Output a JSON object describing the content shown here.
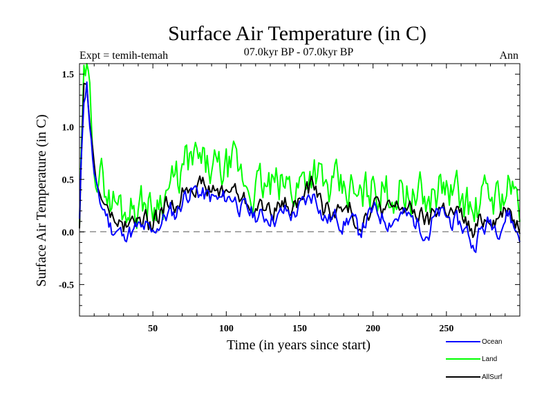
{
  "header": {
    "title": "Surface Air Temperature (in C)",
    "left_label": "Expt = temih-temah",
    "center_label": "07.0kyr BP - 07.0kyr BP",
    "right_label": "Ann"
  },
  "chart_data": {
    "type": "line",
    "title": "Surface Air Temperature (in C)",
    "xlabel": "Time (in years since start)",
    "ylabel": "Surface Air Temperature (in C)",
    "xlim": [
      0,
      300
    ],
    "ylim": [
      -0.8,
      1.6
    ],
    "xticks": [
      50,
      100,
      150,
      200,
      250
    ],
    "yticks": [
      -0.5,
      0.0,
      0.5,
      1.0,
      1.5
    ],
    "ytick_labels": [
      "-0.5",
      "0.0",
      "0.5",
      "1.0",
      "1.5"
    ],
    "reference_line": 0.0,
    "keypoints": [
      [
        0,
        0.1
      ],
      [
        1,
        0.55
      ],
      [
        3,
        1.3
      ],
      [
        5,
        1.45
      ],
      [
        8,
        0.9
      ],
      [
        10,
        0.6
      ],
      [
        12,
        0.4
      ],
      [
        15,
        0.3
      ],
      [
        18,
        0.25
      ],
      [
        20,
        0.15
      ],
      [
        22,
        0.1
      ],
      [
        25,
        0.08
      ],
      [
        28,
        0.05
      ],
      [
        30,
        -0.02
      ],
      [
        33,
        0.1
      ],
      [
        36,
        0.05
      ],
      [
        40,
        0.1
      ],
      [
        42,
        0.05
      ],
      [
        45,
        0.1
      ],
      [
        48,
        0.03
      ],
      [
        50,
        0.02
      ],
      [
        52,
        0.1
      ],
      [
        55,
        0.15
      ],
      [
        58,
        0.2
      ],
      [
        62,
        0.25
      ],
      [
        65,
        0.22
      ],
      [
        68,
        0.3
      ],
      [
        72,
        0.42
      ],
      [
        75,
        0.45
      ],
      [
        80,
        0.45
      ],
      [
        85,
        0.4
      ],
      [
        90,
        0.38
      ],
      [
        95,
        0.35
      ],
      [
        100,
        0.38
      ],
      [
        105,
        0.4
      ],
      [
        110,
        0.3
      ],
      [
        115,
        0.25
      ],
      [
        120,
        0.22
      ],
      [
        125,
        0.2
      ],
      [
        130,
        0.22
      ],
      [
        135,
        0.2
      ],
      [
        140,
        0.25
      ],
      [
        145,
        0.22
      ],
      [
        150,
        0.28
      ],
      [
        155,
        0.35
      ],
      [
        158,
        0.4
      ],
      [
        160,
        0.42
      ],
      [
        163,
        0.35
      ],
      [
        166,
        0.2
      ],
      [
        170,
        0.18
      ],
      [
        175,
        0.2
      ],
      [
        180,
        0.15
      ],
      [
        185,
        0.2
      ],
      [
        190,
        0.05
      ],
      [
        193,
        0.12
      ],
      [
        196,
        0.18
      ],
      [
        200,
        0.25
      ],
      [
        205,
        0.22
      ],
      [
        210,
        0.18
      ],
      [
        215,
        0.2
      ],
      [
        220,
        0.22
      ],
      [
        225,
        0.18
      ],
      [
        230,
        0.15
      ],
      [
        235,
        0.1
      ],
      [
        238,
        0.05
      ],
      [
        240,
        0.15
      ],
      [
        245,
        0.22
      ],
      [
        250,
        0.2
      ],
      [
        255,
        0.15
      ],
      [
        260,
        0.12
      ],
      [
        265,
        0.05
      ],
      [
        268,
        -0.08
      ],
      [
        272,
        0.05
      ],
      [
        276,
        0.1
      ],
      [
        280,
        0.15
      ],
      [
        285,
        0.12
      ],
      [
        290,
        0.2
      ],
      [
        293,
        0.25
      ],
      [
        296,
        0.1
      ],
      [
        300,
        0.05
      ]
    ],
    "series": [
      {
        "name": "Ocean",
        "color": "#0000ff",
        "offset": -0.06,
        "noise": 0.08,
        "seed": 11
      },
      {
        "name": "Land",
        "color": "#00ff00",
        "offset": 0.2,
        "noise": 0.18,
        "seed": 29
      },
      {
        "name": "AllSurf",
        "color": "#000000",
        "offset": 0.02,
        "noise": 0.08,
        "seed": 47
      }
    ],
    "legend": {
      "placement": "bottom-right",
      "entries": [
        "Ocean",
        "Land",
        "AllSurf"
      ]
    }
  }
}
